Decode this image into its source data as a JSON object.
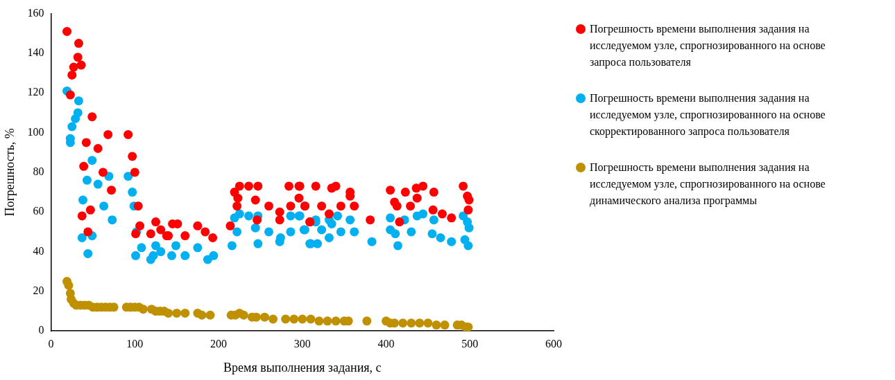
{
  "chart_data": {
    "type": "scatter",
    "xlabel": "Время выполнения задания, с",
    "ylabel": "Погрешность, %",
    "xlim": [
      0,
      600
    ],
    "xticks": [
      0,
      100,
      200,
      300,
      400,
      500,
      600
    ],
    "ylim": [
      0,
      160
    ],
    "yticks": [
      0,
      20,
      40,
      60,
      80,
      100,
      120,
      140,
      160
    ],
    "grid": false,
    "legend": "right",
    "marker": "circle",
    "series": [
      {
        "name": "Погрешность времени выполнения задания на исследуемом узле, спрогнозированного на основе запроса пользователя",
        "color": "#ff0000",
        "x": [
          19,
          33,
          32,
          36,
          27,
          25,
          23,
          49,
          68,
          92,
          42,
          56,
          97,
          39,
          62,
          100,
          72,
          47,
          37,
          104,
          44,
          106,
          101,
          125,
          131,
          119,
          145,
          140,
          151,
          138,
          160,
          175,
          184,
          193,
          219,
          225,
          236,
          247,
          223,
          222,
          244,
          246,
          214,
          260,
          273,
          273,
          284,
          296,
          296,
          286,
          303,
          309,
          297,
          316,
          335,
          340,
          357,
          357,
          303,
          323,
          346,
          362,
          309,
          332,
          381,
          405,
          423,
          436,
          444,
          457,
          437,
          410,
          413,
          429,
          456,
          467,
          478,
          492,
          497,
          499,
          498,
          416
        ],
        "values": [
          151,
          145,
          138,
          134,
          133,
          129,
          119,
          108,
          99,
          99,
          95,
          92,
          88,
          83,
          80,
          80,
          71,
          61,
          58,
          63,
          50,
          53,
          49,
          55,
          51,
          49,
          54,
          48,
          54,
          48,
          48,
          53,
          50,
          47,
          70,
          73,
          73,
          73,
          67,
          63,
          66,
          56,
          53,
          63,
          60,
          56,
          73,
          73,
          67,
          63,
          63,
          55,
          73,
          73,
          72,
          73,
          70,
          68,
          63,
          63,
          63,
          63,
          55,
          59,
          56,
          71,
          70,
          72,
          73,
          70,
          67,
          65,
          63,
          63,
          61,
          59,
          57,
          73,
          68,
          66,
          61,
          55
        ]
      },
      {
        "name": "Погрешность времени выполнения задания на исследуемом узле, спрогнозированного на основе скорректированного запроса пользователя",
        "color": "#00b0f0",
        "x": [
          19,
          33,
          32,
          29,
          25,
          23,
          23,
          49,
          69,
          92,
          43,
          56,
          97,
          38,
          63,
          99,
          73,
          37,
          49,
          44,
          102,
          108,
          101,
          122,
          125,
          131,
          119,
          149,
          144,
          160,
          175,
          187,
          194,
          216,
          219,
          225,
          236,
          247,
          222,
          244,
          247,
          260,
          274,
          273,
          286,
          286,
          296,
          302,
          309,
          297,
          316,
          316,
          303,
          323,
          332,
          342,
          335,
          357,
          346,
          362,
          332,
          310,
          318,
          383,
          405,
          405,
          411,
          414,
          422,
          430,
          437,
          444,
          457,
          455,
          465,
          478,
          492,
          497,
          499,
          494,
          498
        ],
        "values": [
          121,
          116,
          110,
          107,
          103,
          97,
          95,
          86,
          78,
          78,
          76,
          74,
          70,
          66,
          63,
          63,
          56,
          47,
          48,
          39,
          50,
          42,
          38,
          38,
          43,
          40,
          36,
          43,
          38,
          38,
          42,
          36,
          38,
          43,
          57,
          59,
          58,
          58,
          50,
          52,
          44,
          50,
          47,
          45,
          58,
          50,
          58,
          51,
          44,
          58,
          56,
          55,
          51,
          51,
          56,
          58,
          54,
          56,
          50,
          50,
          47,
          44,
          44,
          45,
          57,
          51,
          49,
          43,
          56,
          50,
          58,
          59,
          56,
          49,
          47,
          45,
          58,
          55,
          52,
          46,
          43
        ]
      },
      {
        "name": "Погрешность времени выполнения задания на исследуемом узле, спрогнозированного на основе динамического анализа программы",
        "color": "#bf9000",
        "x": [
          19,
          21,
          23,
          24,
          27,
          30,
          35,
          40,
          45,
          50,
          55,
          60,
          65,
          70,
          75,
          90,
          95,
          100,
          105,
          110,
          120,
          125,
          130,
          135,
          140,
          150,
          160,
          175,
          180,
          190,
          215,
          220,
          225,
          230,
          240,
          245,
          255,
          265,
          280,
          290,
          300,
          310,
          320,
          330,
          340,
          350,
          355,
          377,
          400,
          405,
          410,
          420,
          430,
          440,
          450,
          460,
          470,
          485,
          490,
          495,
          498
        ],
        "values": [
          25,
          23,
          19,
          16,
          14,
          13,
          13,
          13,
          13,
          12,
          12,
          12,
          12,
          12,
          12,
          12,
          12,
          12,
          12,
          11,
          11,
          10,
          10,
          10,
          9,
          9,
          9,
          9,
          8,
          8,
          8,
          8,
          9,
          8,
          7,
          7,
          7,
          6,
          6,
          6,
          6,
          6,
          5,
          5,
          5,
          5,
          5,
          5,
          5,
          4,
          4,
          4,
          4,
          4,
          4,
          3,
          3,
          3,
          3,
          2,
          2
        ]
      }
    ]
  }
}
